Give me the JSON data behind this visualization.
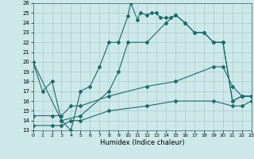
{
  "xlabel": "Humidex (Indice chaleur)",
  "xlim": [
    0,
    23
  ],
  "ylim": [
    13,
    26
  ],
  "xticks": [
    0,
    1,
    2,
    3,
    4,
    5,
    6,
    7,
    8,
    9,
    10,
    11,
    12,
    13,
    14,
    15,
    16,
    17,
    18,
    19,
    20,
    21,
    22,
    23
  ],
  "yticks": [
    13,
    14,
    15,
    16,
    17,
    18,
    19,
    20,
    21,
    22,
    23,
    24,
    25,
    26
  ],
  "background_color": "#cce8e8",
  "grid_color": "#aacccc",
  "line_color": "#1a6b6b",
  "line1_x": [
    0,
    1,
    2,
    3,
    4,
    5,
    6,
    7,
    8,
    9,
    10,
    10.3,
    11,
    11.3,
    12,
    12.5,
    13,
    13.4,
    14,
    14.5,
    15,
    16,
    17,
    18,
    19,
    20,
    21,
    22,
    23
  ],
  "line1_y": [
    20.0,
    17.0,
    18.0,
    14.0,
    13.0,
    17.0,
    17.5,
    19.5,
    22.0,
    22.0,
    24.7,
    26.0,
    24.3,
    25.0,
    24.8,
    25.0,
    25.0,
    24.5,
    24.5,
    24.5,
    24.8,
    24.0,
    23.0,
    23.0,
    22.0,
    22.0,
    16.0,
    16.5,
    16.5
  ],
  "line2_x": [
    0,
    3,
    5,
    8,
    9,
    10,
    12,
    14,
    15,
    16,
    17,
    18,
    19,
    20,
    21,
    22,
    23
  ],
  "line2_y": [
    20.0,
    14.0,
    14.5,
    17.0,
    19.0,
    22.0,
    22.0,
    24.0,
    24.8,
    24.0,
    23.0,
    23.0,
    22.0,
    22.0,
    16.0,
    16.5,
    16.5
  ],
  "line3_x": [
    0,
    2,
    3,
    4,
    5,
    8,
    12,
    15,
    19,
    20,
    21,
    22,
    23
  ],
  "line3_y": [
    14.5,
    14.5,
    14.5,
    15.5,
    15.5,
    16.5,
    17.5,
    18.0,
    19.5,
    19.5,
    17.5,
    16.5,
    16.5
  ],
  "line4_x": [
    0,
    2,
    3,
    4,
    5,
    8,
    12,
    15,
    19,
    21,
    22,
    23
  ],
  "line4_y": [
    13.5,
    13.5,
    13.5,
    14.0,
    14.0,
    15.0,
    15.5,
    16.0,
    16.0,
    15.5,
    15.5,
    16.0
  ]
}
